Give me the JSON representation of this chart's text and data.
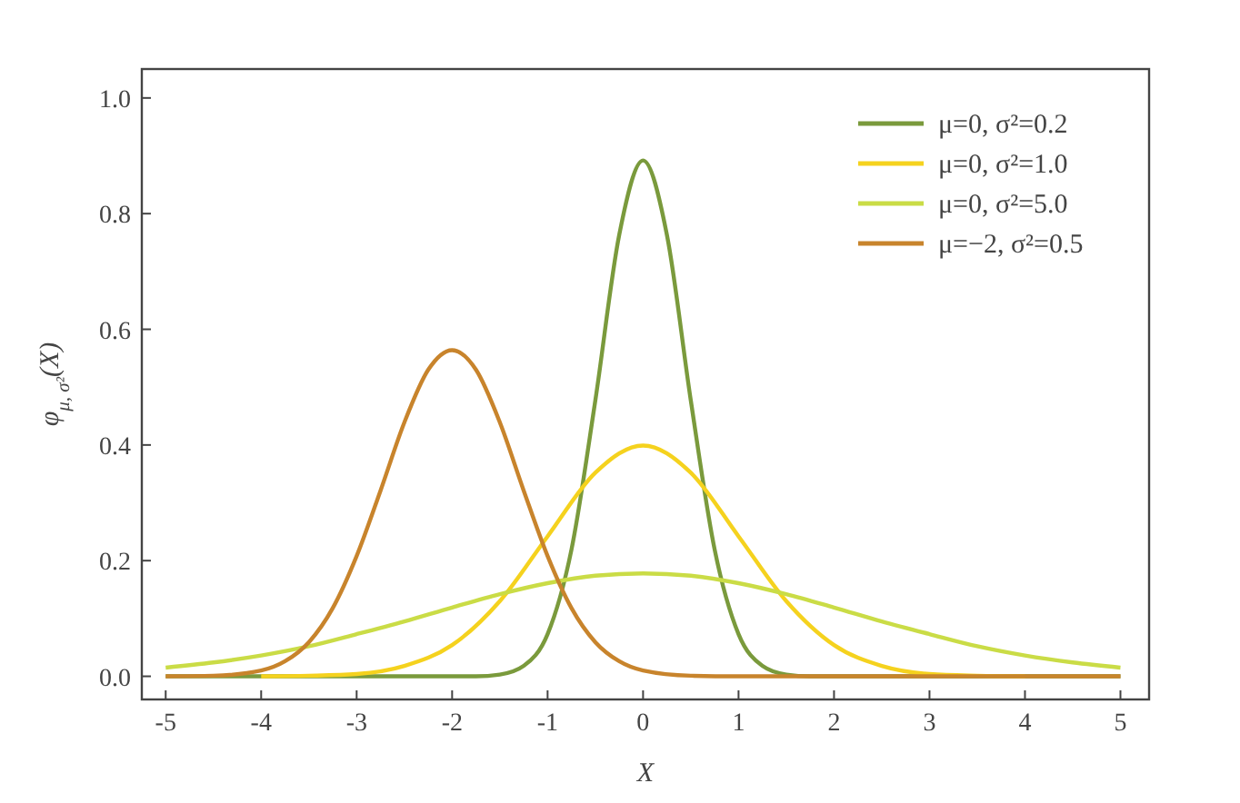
{
  "chart_data": {
    "type": "line",
    "xlabel": "X",
    "ylabel": "φ$_{μ, σ²}$(X)",
    "xlim": [
      -5.25,
      5.3
    ],
    "ylim": [
      -0.04,
      1.05
    ],
    "xticks": [
      -5,
      -4,
      -3,
      -2,
      -1,
      0,
      1,
      2,
      3,
      4,
      5
    ],
    "yticks": [
      {
        "value": 0,
        "label": "0.0"
      },
      0.2,
      0.4,
      0.6,
      0.8,
      {
        "value": 1,
        "label": "1.0"
      }
    ],
    "grid": false,
    "legend": "top right",
    "marker": "none",
    "line_style": "solid",
    "series": [
      {
        "name": "μ=0, σ²=0.2",
        "color": "#7a9a3c",
        "x": [
          -5,
          -2,
          -1.75,
          -1.5,
          -1.25,
          -1,
          -0.75,
          -0.5,
          -0.25,
          0,
          0.25,
          0.5,
          0.75,
          1,
          1.25,
          1.5,
          1.75,
          2,
          5
        ],
        "values": [
          0,
          0,
          0,
          0.003,
          0.018,
          0.073,
          0.219,
          0.477,
          0.763,
          0.892,
          0.763,
          0.477,
          0.219,
          0.073,
          0.018,
          0.003,
          0,
          0,
          0
        ]
      },
      {
        "name": "μ=0, σ²=1.0",
        "color": "#f5d21e",
        "x": [
          -4,
          -3.5,
          -3,
          -2.5,
          -2,
          -1.5,
          -1,
          -0.5,
          0,
          0.5,
          1,
          1.5,
          2,
          2.5,
          3,
          3.5,
          4
        ],
        "values": [
          0,
          0.001,
          0.004,
          0.018,
          0.054,
          0.13,
          0.242,
          0.352,
          0.399,
          0.352,
          0.242,
          0.13,
          0.054,
          0.018,
          0.004,
          0.001,
          0
        ]
      },
      {
        "name": "μ=0, σ²=5.0",
        "color": "#cadc46",
        "x": [
          -5,
          -4.5,
          -4,
          -3.5,
          -3,
          -2.5,
          -2,
          -1.5,
          -1,
          -0.5,
          0,
          0.5,
          1,
          1.5,
          2,
          2.5,
          3,
          3.5,
          4,
          4.5,
          5
        ],
        "values": [
          0.015,
          0.024,
          0.036,
          0.052,
          0.073,
          0.095,
          0.119,
          0.142,
          0.161,
          0.174,
          0.178,
          0.174,
          0.161,
          0.142,
          0.119,
          0.095,
          0.073,
          0.052,
          0.036,
          0.024,
          0.015
        ]
      },
      {
        "name": "μ=−2, σ²=0.5",
        "color": "#c8842c",
        "x": [
          -5,
          -4.5,
          -4,
          -3.75,
          -3.5,
          -3.25,
          -3,
          -2.75,
          -2.5,
          -2.25,
          -2,
          -1.75,
          -1.5,
          -1.25,
          -1,
          -0.75,
          -0.5,
          -0.25,
          0,
          0.5,
          1,
          5
        ],
        "values": [
          0,
          0.001,
          0.01,
          0.026,
          0.059,
          0.118,
          0.208,
          0.321,
          0.439,
          0.53,
          0.564,
          0.53,
          0.439,
          0.321,
          0.208,
          0.118,
          0.059,
          0.026,
          0.01,
          0.001,
          0,
          0
        ]
      }
    ]
  }
}
